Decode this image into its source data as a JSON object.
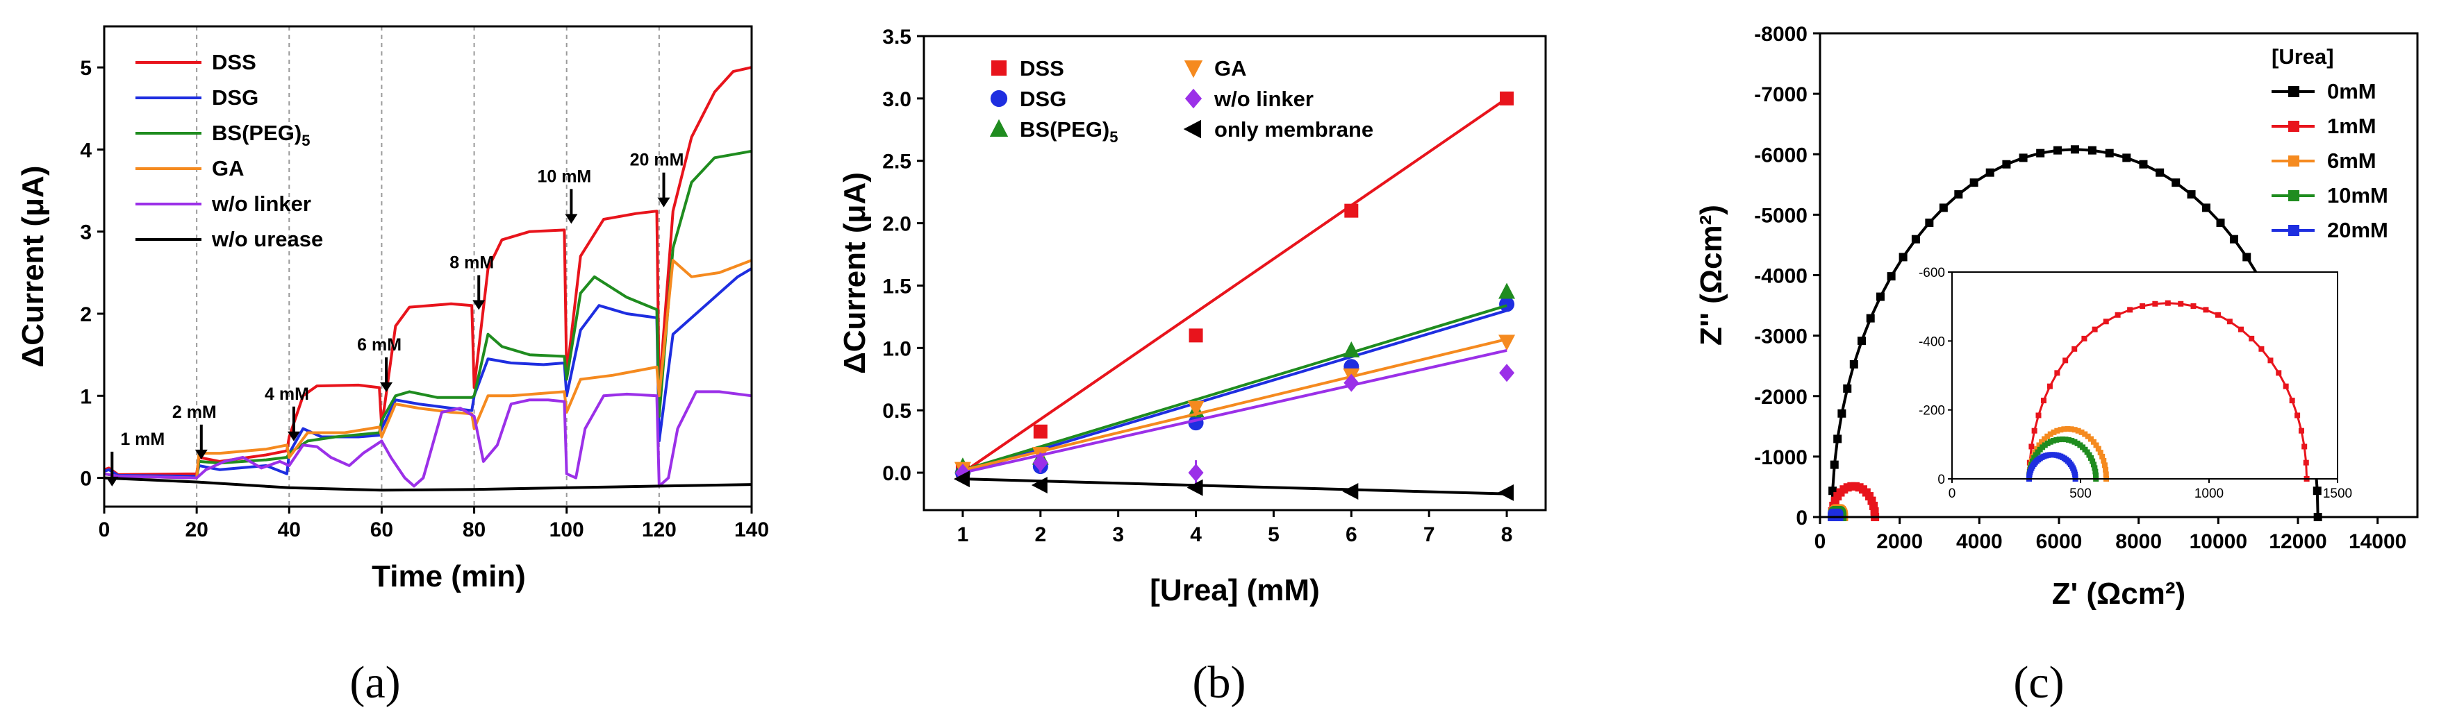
{
  "chart_data": [
    {
      "panel": "(a)",
      "type": "line",
      "xlabel": "Time (min)",
      "ylabel": "ΔCurrent (μA)",
      "xlim": [
        0,
        140
      ],
      "ylim": [
        -0.35,
        5.5
      ],
      "xticks": [
        0,
        20,
        40,
        60,
        80,
        100,
        120,
        140
      ],
      "yticks": [
        0,
        1,
        2,
        3,
        4,
        5
      ],
      "vlines": [
        20,
        40,
        60,
        80,
        100,
        120
      ],
      "annotations": [
        {
          "text": "1 mM",
          "x": 2,
          "y": 0.15
        },
        {
          "text": "2 mM",
          "x": 21,
          "y": 0.48
        },
        {
          "text": "4 mM",
          "x": 41,
          "y": 0.7
        },
        {
          "text": "6 mM",
          "x": 61,
          "y": 1.3
        },
        {
          "text": "8 mM",
          "x": 81,
          "y": 2.3
        },
        {
          "text": "10 mM",
          "x": 101,
          "y": 3.35
        },
        {
          "text": "20 mM",
          "x": 121,
          "y": 3.55
        }
      ],
      "series": [
        {
          "name": "DSS",
          "color": "#e8141c",
          "points": [
            [
              0,
              0.1
            ],
            [
              1,
              0.12
            ],
            [
              3,
              0.04
            ],
            [
              20,
              0.05
            ],
            [
              20.5,
              0.25
            ],
            [
              25,
              0.2
            ],
            [
              35,
              0.28
            ],
            [
              39.5,
              0.33
            ],
            [
              40,
              0.5
            ],
            [
              43,
              1.0
            ],
            [
              46,
              1.12
            ],
            [
              55,
              1.13
            ],
            [
              59.5,
              1.1
            ],
            [
              60,
              0.62
            ],
            [
              63,
              1.85
            ],
            [
              66,
              2.08
            ],
            [
              75,
              2.12
            ],
            [
              79.5,
              2.1
            ],
            [
              80,
              1.1
            ],
            [
              83,
              2.55
            ],
            [
              86,
              2.9
            ],
            [
              92,
              3.0
            ],
            [
              99.5,
              3.02
            ],
            [
              100,
              1.25
            ],
            [
              103,
              2.7
            ],
            [
              108,
              3.15
            ],
            [
              115,
              3.22
            ],
            [
              119.5,
              3.25
            ],
            [
              120,
              1.05
            ],
            [
              123,
              3.25
            ],
            [
              127,
              4.15
            ],
            [
              132,
              4.7
            ],
            [
              136,
              4.95
            ],
            [
              140,
              5.0
            ]
          ]
        },
        {
          "name": "DSG",
          "color": "#1e2ee0",
          "points": [
            [
              0,
              0.08
            ],
            [
              1,
              0.1
            ],
            [
              3,
              0.03
            ],
            [
              20,
              0.02
            ],
            [
              20.5,
              0.15
            ],
            [
              25,
              0.1
            ],
            [
              35,
              0.15
            ],
            [
              39.5,
              0.05
            ],
            [
              40,
              0.3
            ],
            [
              43,
              0.6
            ],
            [
              47,
              0.5
            ],
            [
              55,
              0.5
            ],
            [
              59.5,
              0.52
            ],
            [
              60,
              0.6
            ],
            [
              63,
              0.95
            ],
            [
              68,
              0.9
            ],
            [
              75,
              0.85
            ],
            [
              79.5,
              0.82
            ],
            [
              80,
              1.0
            ],
            [
              83,
              1.45
            ],
            [
              88,
              1.4
            ],
            [
              95,
              1.38
            ],
            [
              99.5,
              1.4
            ],
            [
              100,
              1.0
            ],
            [
              103,
              1.8
            ],
            [
              107,
              2.1
            ],
            [
              113,
              2.0
            ],
            [
              119.5,
              1.95
            ],
            [
              120,
              0.45
            ],
            [
              123,
              1.75
            ],
            [
              128,
              2.0
            ],
            [
              133,
              2.25
            ],
            [
              137,
              2.45
            ],
            [
              140,
              2.55
            ]
          ]
        },
        {
          "name": "BS(PEG)5",
          "color": "#1f8c1f",
          "points": [
            [
              0,
              0.05
            ],
            [
              3,
              0.02
            ],
            [
              20,
              0.0
            ],
            [
              20.5,
              0.2
            ],
            [
              25,
              0.18
            ],
            [
              35,
              0.22
            ],
            [
              39.5,
              0.25
            ],
            [
              40,
              0.3
            ],
            [
              44,
              0.45
            ],
            [
              50,
              0.5
            ],
            [
              59.5,
              0.55
            ],
            [
              60,
              0.7
            ],
            [
              63,
              1.0
            ],
            [
              66,
              1.05
            ],
            [
              72,
              0.98
            ],
            [
              79.5,
              0.98
            ],
            [
              80,
              1.0
            ],
            [
              83,
              1.75
            ],
            [
              86,
              1.6
            ],
            [
              92,
              1.5
            ],
            [
              99.5,
              1.48
            ],
            [
              100,
              1.2
            ],
            [
              103,
              2.25
            ],
            [
              106,
              2.45
            ],
            [
              113,
              2.2
            ],
            [
              119.5,
              2.05
            ],
            [
              120,
              0.75
            ],
            [
              123,
              2.8
            ],
            [
              127,
              3.6
            ],
            [
              132,
              3.9
            ],
            [
              140,
              3.98
            ]
          ]
        },
        {
          "name": "GA",
          "color": "#f58a1f",
          "points": [
            [
              0,
              0.05
            ],
            [
              3,
              0.02
            ],
            [
              20,
              0.0
            ],
            [
              20.5,
              0.3
            ],
            [
              25,
              0.3
            ],
            [
              35,
              0.35
            ],
            [
              39.5,
              0.4
            ],
            [
              40,
              0.25
            ],
            [
              44,
              0.55
            ],
            [
              52,
              0.55
            ],
            [
              59.5,
              0.62
            ],
            [
              60,
              0.5
            ],
            [
              63,
              0.9
            ],
            [
              68,
              0.85
            ],
            [
              75,
              0.8
            ],
            [
              79.5,
              0.78
            ],
            [
              80,
              0.6
            ],
            [
              83,
              1.0
            ],
            [
              88,
              1.0
            ],
            [
              99.5,
              1.05
            ],
            [
              100,
              0.8
            ],
            [
              103,
              1.2
            ],
            [
              110,
              1.25
            ],
            [
              119.5,
              1.35
            ],
            [
              120,
              1.0
            ],
            [
              123,
              2.65
            ],
            [
              127,
              2.45
            ],
            [
              133,
              2.5
            ],
            [
              140,
              2.65
            ]
          ]
        },
        {
          "name": "w/o linker",
          "color": "#9b30e8",
          "points": [
            [
              0,
              0.05
            ],
            [
              3,
              0.02
            ],
            [
              20,
              0.0
            ],
            [
              22,
              0.1
            ],
            [
              26,
              0.2
            ],
            [
              30,
              0.25
            ],
            [
              34,
              0.12
            ],
            [
              38,
              0.2
            ],
            [
              40,
              0.15
            ],
            [
              43,
              0.4
            ],
            [
              46,
              0.38
            ],
            [
              49,
              0.25
            ],
            [
              53,
              0.15
            ],
            [
              56,
              0.3
            ],
            [
              60,
              0.45
            ],
            [
              62,
              0.25
            ],
            [
              65,
              0.0
            ],
            [
              67,
              -0.1
            ],
            [
              69,
              0.0
            ],
            [
              73,
              0.8
            ],
            [
              77,
              0.85
            ],
            [
              80,
              0.75
            ],
            [
              82,
              0.2
            ],
            [
              85,
              0.4
            ],
            [
              88,
              0.9
            ],
            [
              92,
              0.95
            ],
            [
              96,
              0.95
            ],
            [
              99.5,
              0.93
            ],
            [
              100,
              0.05
            ],
            [
              102,
              0.0
            ],
            [
              104,
              0.6
            ],
            [
              108,
              1.0
            ],
            [
              113,
              1.02
            ],
            [
              119.5,
              1.0
            ],
            [
              120,
              -0.1
            ],
            [
              122,
              0.0
            ],
            [
              124,
              0.6
            ],
            [
              128,
              1.05
            ],
            [
              133,
              1.05
            ],
            [
              140,
              1.0
            ]
          ]
        },
        {
          "name": "w/o urease",
          "color": "#000000",
          "points": [
            [
              0,
              0.0
            ],
            [
              20,
              -0.05
            ],
            [
              40,
              -0.12
            ],
            [
              60,
              -0.15
            ],
            [
              80,
              -0.14
            ],
            [
              100,
              -0.12
            ],
            [
              120,
              -0.1
            ],
            [
              140,
              -0.08
            ]
          ]
        }
      ]
    },
    {
      "panel": "(b)",
      "type": "scatter",
      "xlabel": "[Urea] (mM)",
      "ylabel": "ΔCurrent (μA)",
      "xlim": [
        0.5,
        8.5
      ],
      "ylim": [
        -0.3,
        3.5
      ],
      "xticks": [
        1,
        2,
        3,
        4,
        5,
        6,
        7,
        8
      ],
      "yticks": [
        0.0,
        0.5,
        1.0,
        1.5,
        2.0,
        2.5,
        3.0,
        3.5
      ],
      "ytick_labels": [
        "0.0",
        "0.5",
        "1.0",
        "1.5",
        "2.0",
        "2.5",
        "3.0",
        "3.5"
      ],
      "x": [
        1,
        2,
        4,
        6,
        8
      ],
      "series": [
        {
          "name": "DSS",
          "color": "#e8141c",
          "marker": "square",
          "values": [
            0.02,
            0.33,
            1.1,
            2.1,
            3.0
          ],
          "fit": [
            0.0,
            3.0
          ],
          "err": [
            0.02,
            0.03,
            0.05,
            0.04,
            0.03
          ]
        },
        {
          "name": "DSG",
          "color": "#1e2ee0",
          "marker": "circle",
          "values": [
            0.0,
            0.05,
            0.4,
            0.85,
            1.35
          ],
          "fit": [
            0.0,
            1.3
          ],
          "err": [
            0.02,
            0.05,
            0.04,
            0.04,
            0.03
          ]
        },
        {
          "name": "BS(PEG)5",
          "color": "#1f8c1f",
          "marker": "triangle-up",
          "values": [
            0.05,
            0.12,
            0.5,
            0.98,
            1.45
          ],
          "fit": [
            0.02,
            1.34
          ],
          "err": [
            0.02,
            0.03,
            0.04,
            0.03,
            0.03
          ]
        },
        {
          "name": "GA",
          "color": "#f58a1f",
          "marker": "triangle-down",
          "values": [
            0.03,
            0.15,
            0.52,
            0.78,
            1.05
          ],
          "fit": [
            0.02,
            1.07
          ],
          "err": [
            0.02,
            0.03,
            0.03,
            0.03,
            0.03
          ]
        },
        {
          "name": "w/o linker",
          "color": "#9b30e8",
          "marker": "diamond",
          "values": [
            0.0,
            0.08,
            0.0,
            0.72,
            0.8
          ],
          "fit": [
            0.0,
            0.98
          ],
          "err": [
            0.02,
            0.08,
            0.1,
            0.04,
            0.05
          ]
        },
        {
          "name": "only membrane",
          "color": "#000000",
          "marker": "triangle-left",
          "values": [
            -0.05,
            -0.1,
            -0.12,
            -0.15,
            -0.16
          ],
          "fit": [
            -0.05,
            -0.17
          ],
          "err": [
            0.01,
            0.01,
            0.01,
            0.01,
            0.01
          ]
        }
      ]
    },
    {
      "panel": "(c)",
      "type": "scatter",
      "xlabel": "Z' (Ωcm²)",
      "ylabel": "Z'' (Ωcm²)",
      "xlim": [
        0,
        15000
      ],
      "ylim": [
        0,
        -8000
      ],
      "xticks": [
        0,
        2000,
        4000,
        6000,
        8000,
        10000,
        12000,
        14000
      ],
      "yticks": [
        0,
        -1000,
        -2000,
        -3000,
        -4000,
        -5000,
        -6000,
        -7000,
        -8000
      ],
      "legend_title": "[Urea]",
      "series": [
        {
          "name": "0mM",
          "color": "#000000",
          "r0": 300,
          "r1": 12500,
          "peak": 6080
        },
        {
          "name": "1mM",
          "color": "#e8141c",
          "r0": 300,
          "r1": 1380,
          "peak": 510
        },
        {
          "name": "6mM",
          "color": "#f58a1f",
          "r0": 300,
          "r1": 600,
          "peak": 145
        },
        {
          "name": "10mM",
          "color": "#1f8c1f",
          "r0": 300,
          "r1": 560,
          "peak": 115
        },
        {
          "name": "20mM",
          "color": "#1e2ee0",
          "r0": 300,
          "r1": 480,
          "peak": 70
        }
      ],
      "inset": {
        "xlim": [
          0,
          1500
        ],
        "ylim": [
          0,
          -600
        ],
        "xticks": [
          0,
          500,
          1000,
          1500
        ],
        "yticks": [
          0,
          -200,
          -400,
          -600
        ]
      }
    }
  ],
  "panel_labels": [
    "(a)",
    "(b)",
    "(c)"
  ]
}
